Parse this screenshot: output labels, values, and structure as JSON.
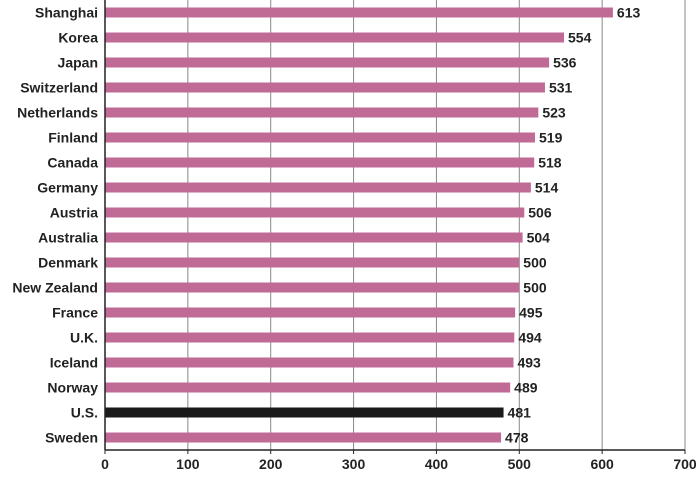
{
  "chart_data": {
    "type": "bar",
    "orientation": "horizontal",
    "title": "",
    "xlabel": "",
    "ylabel": "",
    "categories": [
      "Shanghai",
      "Korea",
      "Japan",
      "Switzerland",
      "Netherlands",
      "Finland",
      "Canada",
      "Germany",
      "Austria",
      "Australia",
      "Denmark",
      "New Zealand",
      "France",
      "U.K.",
      "Iceland",
      "Norway",
      "U.S.",
      "Sweden"
    ],
    "values": [
      613,
      554,
      536,
      531,
      523,
      519,
      518,
      514,
      506,
      504,
      500,
      500,
      495,
      494,
      493,
      489,
      481,
      478
    ],
    "value_labels": [
      "613",
      "554",
      "536",
      "531",
      "523",
      "519",
      "518",
      "514",
      "506",
      "504",
      "500",
      "500",
      "495",
      "494",
      "493",
      "489",
      "481",
      "478"
    ],
    "xlim": [
      0,
      700
    ],
    "xticks": [
      0,
      100,
      200,
      300,
      400,
      500,
      600,
      700
    ],
    "xtick_labels": [
      "0",
      "100",
      "200",
      "300",
      "400",
      "500",
      "600",
      "700"
    ],
    "grid": "vertical",
    "legend": "none",
    "colors": {
      "bar": "#c06a96",
      "highlight_bar": "#1a1a1a",
      "grid": "#888888",
      "axis": "#222222"
    },
    "highlight_category": "U.S."
  }
}
